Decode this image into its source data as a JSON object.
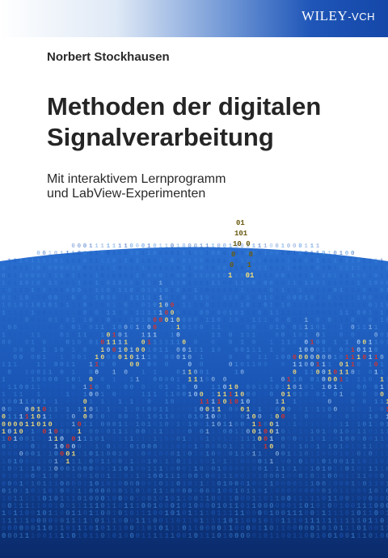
{
  "publisher": {
    "name": "WILEY",
    "suffix": "-VCH"
  },
  "author": "Norbert Stockhausen",
  "title": {
    "line1": "Methoden der digitalen",
    "line2": "Signalverarbeitung"
  },
  "subtitle": {
    "line1": "Mit interaktivem Lernprogramm",
    "line2": "und LabView-Experimenten"
  },
  "art": {
    "description_icon": "binary-signal-art",
    "palette": {
      "dark": "#0b2f74",
      "mid": "#1d5bbf",
      "light": "#3f8be0",
      "yellow": "#f1dc7a",
      "red": "#d8342a",
      "pale": "#9cc4f0"
    }
  }
}
